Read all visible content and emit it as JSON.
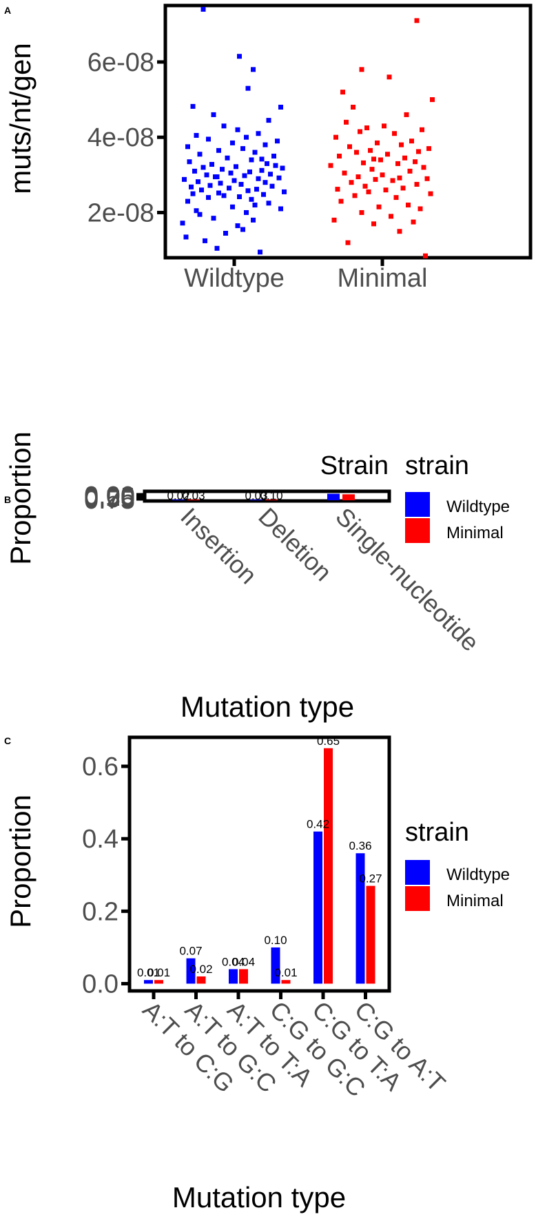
{
  "colors": {
    "wildtype": "#0000ff",
    "minimal": "#ff0000"
  },
  "chart_data": [
    {
      "panel": "A",
      "type": "scatter",
      "ylabel": "muts/nt/gen",
      "categories": [
        "Wildtype",
        "Minimal"
      ],
      "yticks": [
        "2e-08",
        "4e-08",
        "6e-08"
      ],
      "ytick_values": [
        2e-08,
        4e-08,
        6e-08
      ],
      "ylim": [
        8e-09,
        7.5e-08
      ],
      "grid": false,
      "series": [
        {
          "category": "Wildtype",
          "jitter": [
            -0.28,
            0.15,
            -0.1,
            -0.17,
            -0.05,
            0.05,
            0.02,
            -0.3,
            0.11,
            -0.12,
            -0.2,
            0.07,
            -0.22,
            0.27,
            -0.01,
            0.12,
            0.2,
            -0.27,
            0.1,
            -0.15,
            0.03,
            -0.06,
            0.17,
            -0.24,
            -0.09,
            0.29,
            0.08,
            -0.19,
            0.13,
            -0.03,
            -0.25,
            0.22,
            -0.14,
            0.04,
            -0.08,
            0.18,
            -0.21,
            0.0,
            -0.29,
            0.14,
            0.26,
            -0.11,
            0.06,
            -0.16,
            0.21,
            -0.02,
            0.09,
            -0.23,
            0.16,
            -0.07,
            0.28,
            -0.18,
            0.01,
            0.24,
            -0.13,
            0.19,
            -0.26,
            0.1,
            -0.04,
            0.23,
            -0.2,
            0.12,
            -0.09,
            0.05,
            -0.27,
            0.18,
            -0.01,
            0.25,
            -0.15,
            0.07,
            -0.22,
            0.14,
            0.02,
            -0.06,
            0.2,
            -0.12,
            0.27,
            -0.24,
            0.08,
            0.11,
            0.03,
            -0.18,
            0.16,
            -0.1
          ],
          "values": [
            1.35e-08,
            9.5e-09,
            1.05e-08,
            1.25e-08,
            1.45e-08,
            1.55e-08,
            1.65e-08,
            1.72e-08,
            1.8e-08,
            1.85e-08,
            1.95e-08,
            2e-08,
            2.05e-08,
            2.1e-08,
            2.15e-08,
            2.2e-08,
            2.25e-08,
            2.3e-08,
            2.35e-08,
            2.4e-08,
            2.42e-08,
            2.45e-08,
            2.48e-08,
            2.5e-08,
            2.52e-08,
            2.55e-08,
            2.58e-08,
            2.6e-08,
            2.62e-08,
            2.65e-08,
            2.68e-08,
            2.7e-08,
            2.72e-08,
            2.75e-08,
            2.78e-08,
            2.8e-08,
            2.82e-08,
            2.85e-08,
            2.88e-08,
            2.9e-08,
            2.92e-08,
            2.95e-08,
            2.98e-08,
            3e-08,
            3.02e-08,
            3.05e-08,
            3.08e-08,
            3.1e-08,
            3.12e-08,
            3.15e-08,
            3.18e-08,
            3.2e-08,
            3.22e-08,
            3.25e-08,
            3.28e-08,
            3.3e-08,
            3.35e-08,
            3.4e-08,
            3.45e-08,
            3.5e-08,
            3.55e-08,
            3.6e-08,
            3.65e-08,
            3.7e-08,
            3.75e-08,
            3.8e-08,
            3.85e-08,
            3.9e-08,
            3.95e-08,
            4e-08,
            4.05e-08,
            4.1e-08,
            4.2e-08,
            4.3e-08,
            4.45e-08,
            4.6e-08,
            4.8e-08,
            4.82e-08,
            5.3e-08,
            5.8e-08,
            6.15e-08,
            7.4e-08,
            3.42e-08,
            2.95e-08
          ]
        },
        {
          "category": "Minimal",
          "jitter": [
            0.25,
            -0.2,
            0.1,
            -0.05,
            0.18,
            -0.28,
            0.05,
            -0.12,
            0.22,
            -0.02,
            0.15,
            -0.24,
            0.08,
            -0.16,
            0.28,
            -0.08,
            0.02,
            -0.26,
            0.12,
            -0.1,
            0.2,
            -0.18,
            0.06,
            -0.04,
            0.26,
            -0.14,
            0.0,
            -0.22,
            0.16,
            -0.06,
            0.24,
            -0.3,
            0.09,
            -0.11,
            0.19,
            -0.01,
            0.13,
            -0.25,
            0.03,
            -0.15,
            0.21,
            -0.07,
            0.27,
            -0.19,
            0.11,
            -0.03,
            0.17,
            -0.27,
            0.07,
            -0.13,
            0.23,
            -0.09,
            0.01,
            -0.21,
            0.14,
            -0.17,
            0.29,
            -0.23,
            0.04,
            -0.12,
            0.2,
            -0.05,
            0.1
          ],
          "values": [
            8.5e-09,
            1.2e-08,
            1.5e-08,
            1.7e-08,
            1.75e-08,
            1.8e-08,
            1.9e-08,
            2e-08,
            2.1e-08,
            2.15e-08,
            2.2e-08,
            2.3e-08,
            2.4e-08,
            2.45e-08,
            2.5e-08,
            2.55e-08,
            2.6e-08,
            2.62e-08,
            2.65e-08,
            2.7e-08,
            2.75e-08,
            2.8e-08,
            2.85e-08,
            2.88e-08,
            2.9e-08,
            2.95e-08,
            3e-08,
            3.05e-08,
            3.1e-08,
            3.15e-08,
            3.2e-08,
            3.25e-08,
            3.3e-08,
            3.32e-08,
            3.35e-08,
            3.4e-08,
            3.45e-08,
            3.5e-08,
            3.55e-08,
            3.6e-08,
            3.62e-08,
            3.65e-08,
            3.7e-08,
            3.75e-08,
            3.8e-08,
            3.85e-08,
            3.9e-08,
            4e-08,
            4.1e-08,
            4.15e-08,
            4.2e-08,
            4.25e-08,
            4.3e-08,
            4.4e-08,
            4.6e-08,
            4.8e-08,
            5e-08,
            5.2e-08,
            5.6e-08,
            5.8e-08,
            7.1e-08,
            3.42e-08,
            2.92e-08
          ]
        }
      ]
    },
    {
      "panel": "B",
      "type": "bar",
      "ylabel": "Proportion",
      "xlabel": "Mutation type",
      "title": "Strain",
      "legend_title": "strain",
      "legend_entries": [
        "Wildtype",
        "Minimal"
      ],
      "categories": [
        "Insertion",
        "Deletion",
        "Single-nucleotide"
      ],
      "yticks": [
        "0.00",
        "0.25",
        "0.50",
        "0.75"
      ],
      "series": [
        {
          "name": "Wildtype",
          "values": [
            0.02,
            0.03,
            0.95
          ]
        },
        {
          "name": "Minimal",
          "values": [
            0.03,
            0.1,
            0.87
          ]
        }
      ],
      "labels": {
        "Wildtype": [
          "0.02",
          "0.03",
          ""
        ],
        "Minimal": [
          "0.03",
          "0.10",
          ""
        ]
      }
    },
    {
      "panel": "C",
      "type": "bar",
      "ylabel": "Proportion",
      "xlabel": "Mutation type",
      "legend_title": "strain",
      "legend_entries": [
        "Wildtype",
        "Minimal"
      ],
      "categories": [
        "A:T to C:G",
        "A:T to G:C",
        "A:T to T:A",
        "C:G to G:C",
        "C:G to T:A",
        "C:G to A:T"
      ],
      "yticks": [
        "0.0",
        "0.2",
        "0.4",
        "0.6"
      ],
      "ytick_values": [
        0.0,
        0.2,
        0.4,
        0.6
      ],
      "ylim": [
        -0.02,
        0.68
      ],
      "series": [
        {
          "name": "Wildtype",
          "values": [
            0.01,
            0.07,
            0.04,
            0.1,
            0.42,
            0.36
          ],
          "labels": [
            "0.01",
            "0.07",
            "0.04",
            "0.10",
            "0.42",
            "0.36"
          ]
        },
        {
          "name": "Minimal",
          "values": [
            0.01,
            0.02,
            0.04,
            0.01,
            0.65,
            0.27
          ],
          "labels": [
            "0.01",
            "0.02",
            "0.04",
            "0.01",
            "0.65",
            "0.27"
          ]
        }
      ]
    }
  ]
}
